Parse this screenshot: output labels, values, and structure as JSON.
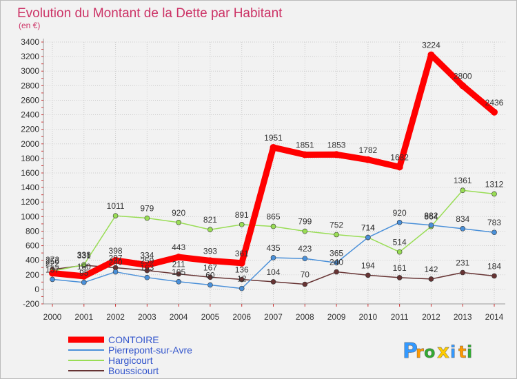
{
  "chart_data": {
    "type": "line",
    "title": "Evolution du Montant de la Dette par Habitant",
    "subtitle": "(en €)",
    "x": [
      "2000",
      "2001",
      "2002",
      "2003",
      "2004",
      "2005",
      "2006",
      "2007",
      "2008",
      "2009",
      "2010",
      "2011",
      "2012",
      "2013",
      "2014"
    ],
    "ylim": [
      -200,
      3400
    ],
    "yticks": [
      -200,
      0,
      200,
      400,
      600,
      800,
      1000,
      1200,
      1400,
      1600,
      1800,
      2000,
      2200,
      2400,
      2600,
      2800,
      3000,
      3200,
      3400
    ],
    "grid": true,
    "legend_position": "bottom-left",
    "series": [
      {
        "name": "CONTOIRE",
        "color": "#ff0000",
        "values": [
          222,
          180,
          398,
          334,
          443,
          393,
          361,
          1951,
          1851,
          1853,
          1782,
          1682,
          3224,
          2800,
          2436
        ]
      },
      {
        "name": "Pierrepont-sur-Avre",
        "color": "#4a90d9",
        "values": [
          137,
          95,
          240,
          163,
          105,
          60,
          12,
          435,
          423,
          365,
          714,
          920,
          882,
          834,
          783
        ]
      },
      {
        "name": "Hargicourt",
        "color": "#99dd55",
        "values": [
          250,
          338,
          1011,
          979,
          920,
          821,
          891,
          865,
          799,
          752,
          714,
          514,
          864,
          1361,
          1312
        ]
      },
      {
        "name": "Boussicourt",
        "color": "#663333",
        "values": [
          272,
          331,
          297,
          259,
          211,
          167,
          136,
          104,
          70,
          240,
          194,
          161,
          142,
          231,
          184
        ]
      }
    ]
  },
  "logo": {
    "letters": [
      "P",
      "r",
      "o",
      "x",
      "i",
      "t",
      "i"
    ],
    "colors": [
      "#3399ff",
      "#ff9900",
      "#33aa33",
      "#ffcc00",
      "#3399ff",
      "#ff9900",
      "#33aa33"
    ]
  }
}
